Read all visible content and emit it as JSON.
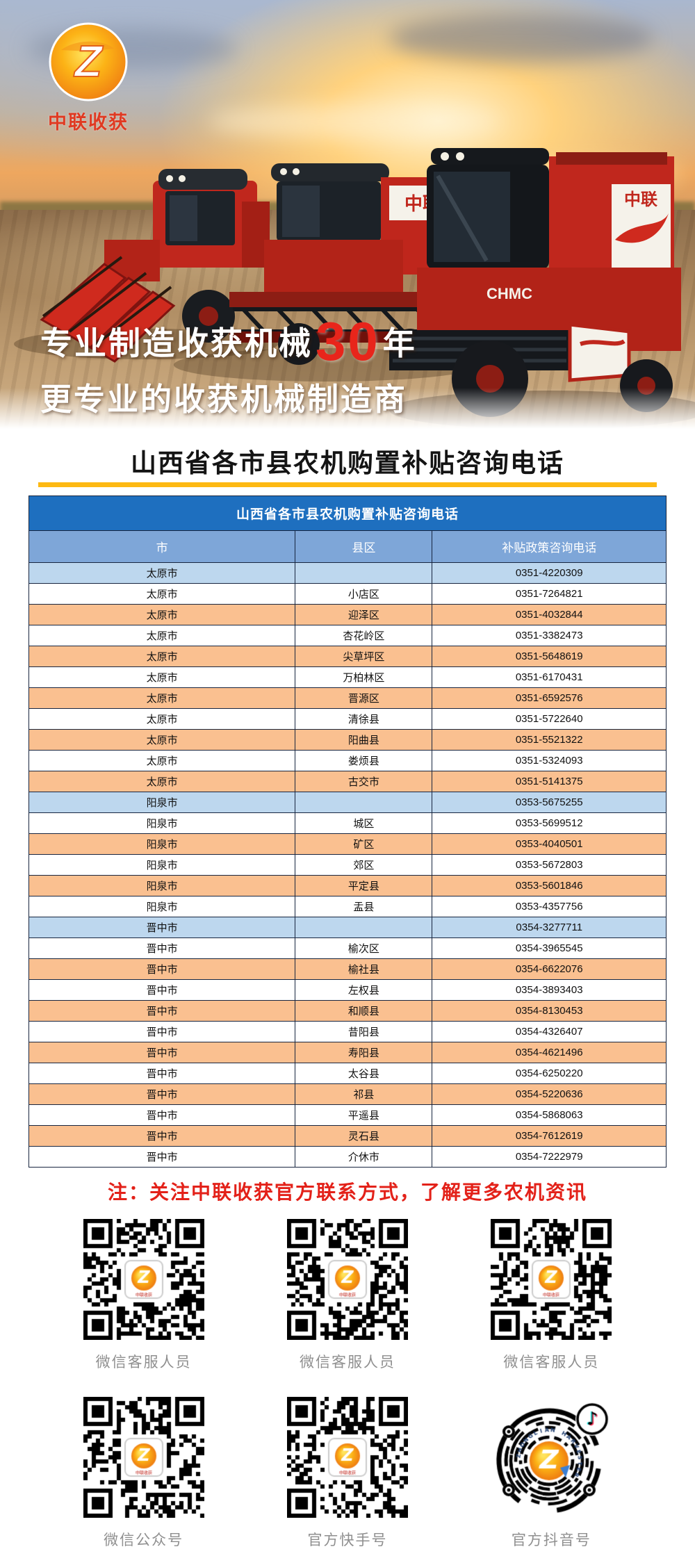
{
  "brand": {
    "logo_text": "中联收获",
    "logo_monogram": "Z"
  },
  "hero": {
    "slogan1_prefix": "专业制造收获机械",
    "slogan1_highlight": "30",
    "slogan1_suffix": "年",
    "slogan2": "更专业的收获机械制造商",
    "machine_text_chmc": "CHMC",
    "machine_text_zhonglian": "中联"
  },
  "page_title": "山西省各市县农机购置补贴咨询电话",
  "table": {
    "title": "山西省各市县农机购置补贴咨询电话",
    "columns": [
      "市",
      "县区",
      "补贴政策咨询电话"
    ],
    "rows": [
      {
        "city": "太原市",
        "county": "",
        "phone": "0351-4220309",
        "variant": "city"
      },
      {
        "city": "太原市",
        "county": "小店区",
        "phone": "0351-7264821",
        "variant": "white"
      },
      {
        "city": "太原市",
        "county": "迎泽区",
        "phone": "0351-4032844",
        "variant": "orange"
      },
      {
        "city": "太原市",
        "county": "杏花岭区",
        "phone": "0351-3382473",
        "variant": "white"
      },
      {
        "city": "太原市",
        "county": "尖草坪区",
        "phone": "0351-5648619",
        "variant": "orange"
      },
      {
        "city": "太原市",
        "county": "万柏林区",
        "phone": "0351-6170431",
        "variant": "white"
      },
      {
        "city": "太原市",
        "county": "晋源区",
        "phone": "0351-6592576",
        "variant": "orange"
      },
      {
        "city": "太原市",
        "county": "清徐县",
        "phone": "0351-5722640",
        "variant": "white"
      },
      {
        "city": "太原市",
        "county": "阳曲县",
        "phone": "0351-5521322",
        "variant": "orange"
      },
      {
        "city": "太原市",
        "county": "娄烦县",
        "phone": "0351-5324093",
        "variant": "white"
      },
      {
        "city": "太原市",
        "county": "古交市",
        "phone": "0351-5141375",
        "variant": "orange"
      },
      {
        "city": "阳泉市",
        "county": "",
        "phone": "0353-5675255",
        "variant": "city"
      },
      {
        "city": "阳泉市",
        "county": "城区",
        "phone": "0353-5699512",
        "variant": "white"
      },
      {
        "city": "阳泉市",
        "county": "矿区",
        "phone": "0353-4040501",
        "variant": "orange"
      },
      {
        "city": "阳泉市",
        "county": "郊区",
        "phone": "0353-5672803",
        "variant": "white"
      },
      {
        "city": "阳泉市",
        "county": "平定县",
        "phone": "0353-5601846",
        "variant": "orange"
      },
      {
        "city": "阳泉市",
        "county": "盂县",
        "phone": "0353-4357756",
        "variant": "white"
      },
      {
        "city": "晋中市",
        "county": "",
        "phone": "0354-3277711",
        "variant": "city"
      },
      {
        "city": "晋中市",
        "county": "榆次区",
        "phone": "0354-3965545",
        "variant": "white"
      },
      {
        "city": "晋中市",
        "county": "榆社县",
        "phone": "0354-6622076",
        "variant": "orange"
      },
      {
        "city": "晋中市",
        "county": "左权县",
        "phone": "0354-3893403",
        "variant": "white"
      },
      {
        "city": "晋中市",
        "county": "和顺县",
        "phone": "0354-8130453",
        "variant": "orange"
      },
      {
        "city": "晋中市",
        "county": "昔阳县",
        "phone": "0354-4326407",
        "variant": "white"
      },
      {
        "city": "晋中市",
        "county": "寿阳县",
        "phone": "0354-4621496",
        "variant": "orange"
      },
      {
        "city": "晋中市",
        "county": "太谷县",
        "phone": "0354-6250220",
        "variant": "white"
      },
      {
        "city": "晋中市",
        "county": "祁县",
        "phone": "0354-5220636",
        "variant": "orange"
      },
      {
        "city": "晋中市",
        "county": "平遥县",
        "phone": "0354-5868063",
        "variant": "white"
      },
      {
        "city": "晋中市",
        "county": "灵石县",
        "phone": "0354-7612619",
        "variant": "orange"
      },
      {
        "city": "晋中市",
        "county": "介休市",
        "phone": "0354-7222979",
        "variant": "white"
      }
    ]
  },
  "note": "注：关注中联收获官方联系方式，了解更多农机资讯",
  "qr_section": {
    "items": [
      {
        "label": "微信客服人员",
        "kind": "qr",
        "icon": "wechat-customer-service-qr"
      },
      {
        "label": "微信客服人员",
        "kind": "qr",
        "icon": "wechat-customer-service-qr"
      },
      {
        "label": "微信客服人员",
        "kind": "qr",
        "icon": "wechat-customer-service-qr"
      },
      {
        "label": "微信公众号",
        "kind": "qr",
        "icon": "wechat-official-account-qr"
      },
      {
        "label": "官方快手号",
        "kind": "qr",
        "icon": "kuaishou-official-qr"
      },
      {
        "label": "官方抖音号",
        "kind": "douyin",
        "icon": "douyin-official-qr",
        "ring_text": "ZHONGLIAN HARVESTER"
      }
    ]
  },
  "colors": {
    "brand_orange": "#f7941d",
    "brand_red": "#e03a22",
    "highlight_red": "#e8251b",
    "table_header_blue": "#1e6fbf",
    "column_header_blue": "#7ea6d8",
    "city_row_blue": "#bdd7ee",
    "alt_row_orange": "#fac090",
    "gold_rule": "#fdb913",
    "note_red": "#e32119",
    "qr_label_gray": "#8f8f8f",
    "douyin_cyan": "#25f4ee",
    "douyin_pink": "#fe2c55"
  }
}
